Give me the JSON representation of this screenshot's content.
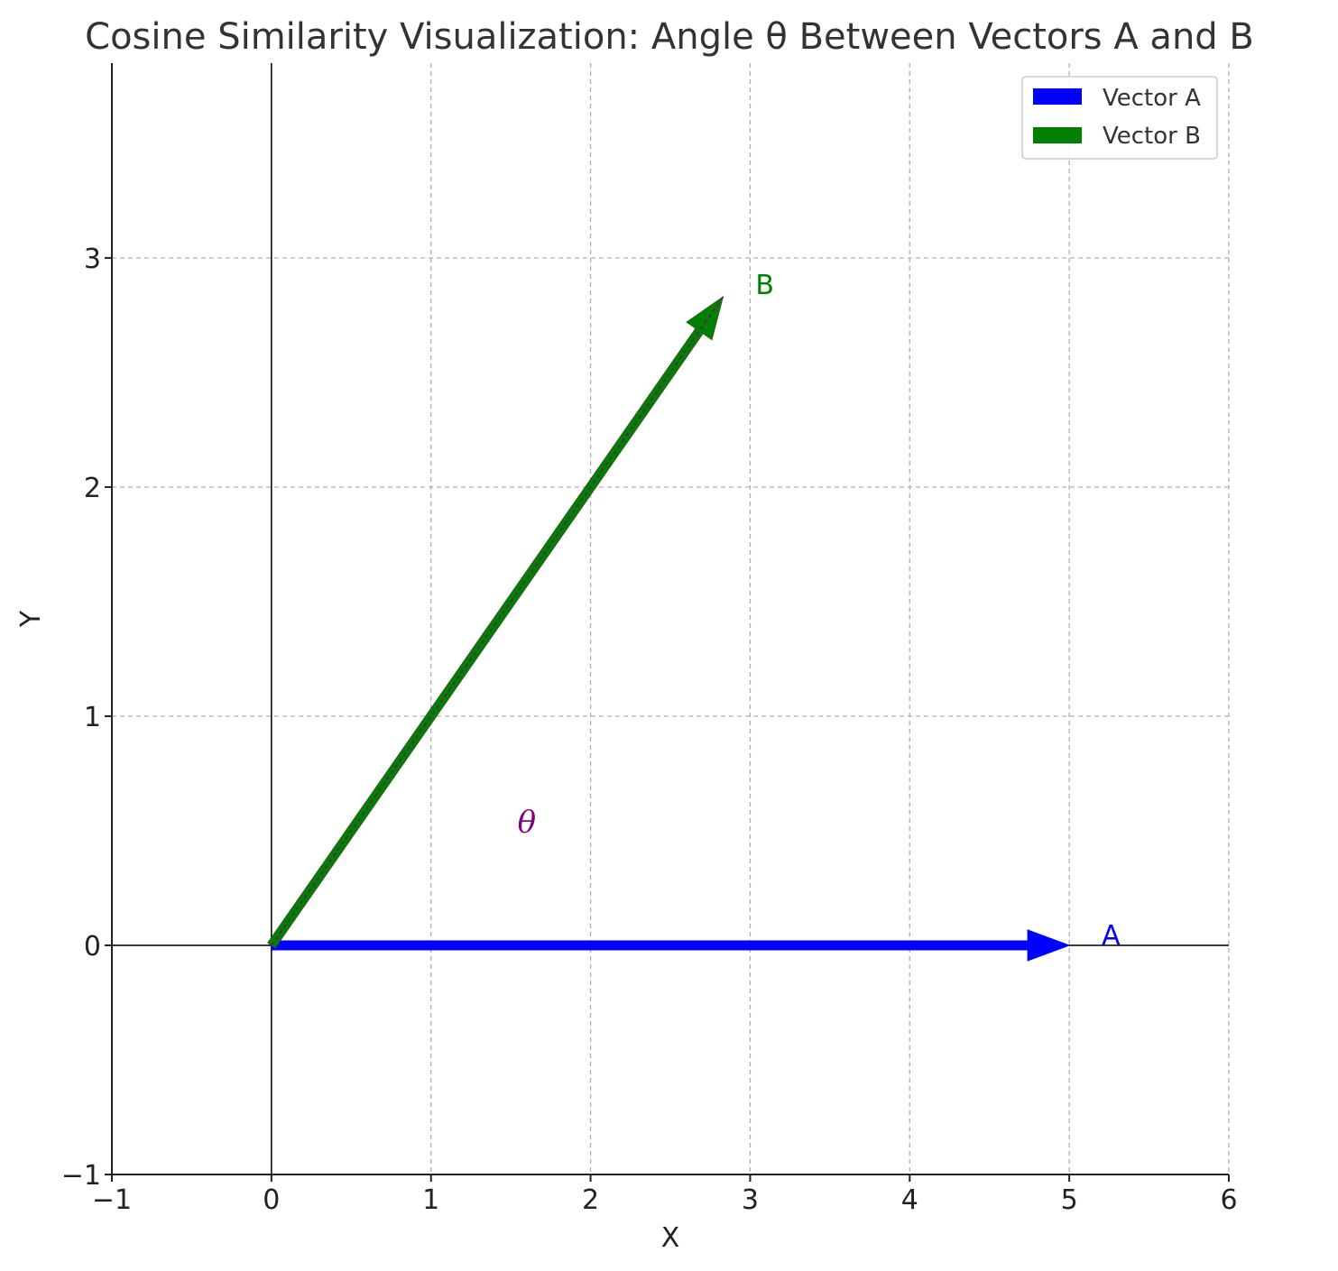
{
  "chart_data": {
    "type": "vector",
    "title": "Cosine Similarity Visualization: Angle θ Between Vectors A and B",
    "xlabel": "X",
    "ylabel": "Y",
    "xlim": [
      -1,
      6
    ],
    "ylim": [
      -1,
      3.85
    ],
    "x_ticks": [
      -1,
      0,
      1,
      2,
      3,
      4,
      5,
      6
    ],
    "y_ticks": [
      -1,
      0,
      1,
      2,
      3
    ],
    "x_tick_labels": [
      "−1",
      "0",
      "1",
      "2",
      "3",
      "4",
      "5",
      "6"
    ],
    "y_tick_labels": [
      "−1",
      "0",
      "1",
      "2",
      "3"
    ],
    "grid": true,
    "legend_placement": "top-right",
    "vectors": [
      {
        "name": "Vector A",
        "label": "A",
        "start": [
          0,
          0
        ],
        "end": [
          5,
          0
        ],
        "color": "#0000ff"
      },
      {
        "name": "Vector B",
        "label": "B",
        "start": [
          0,
          0
        ],
        "end": [
          2.83,
          2.83
        ],
        "color": "#008000"
      }
    ],
    "annotations": [
      {
        "text": "θ",
        "x": 1.6,
        "y": 0.55,
        "color": "#800080"
      }
    ]
  }
}
